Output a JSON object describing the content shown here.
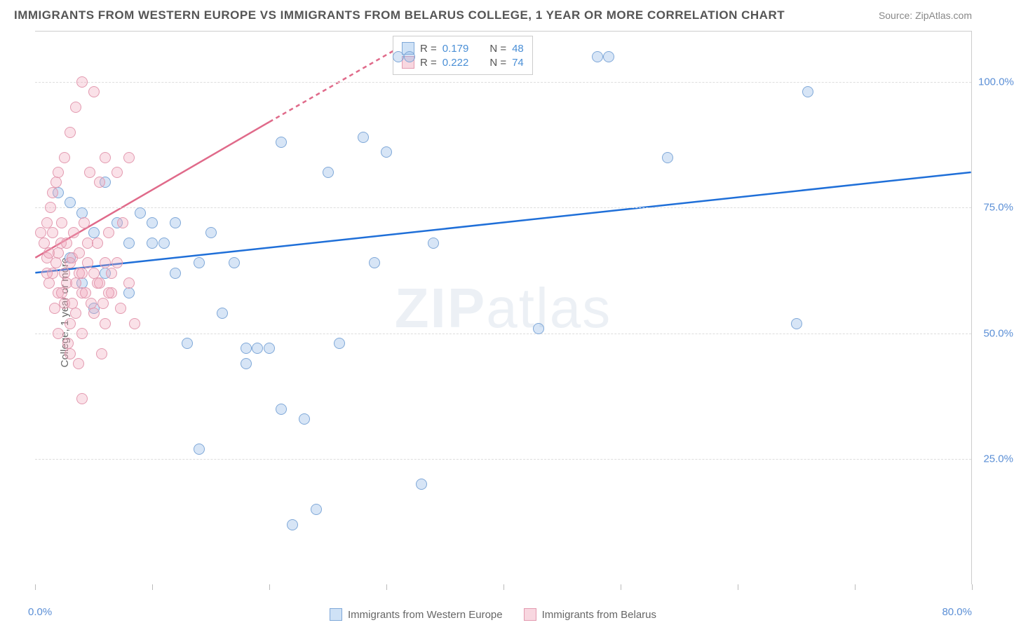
{
  "title": "IMMIGRANTS FROM WESTERN EUROPE VS IMMIGRANTS FROM BELARUS COLLEGE, 1 YEAR OR MORE CORRELATION CHART",
  "source": "Source: ZipAtlas.com",
  "watermark": {
    "zip": "ZIP",
    "atlas": "atlas"
  },
  "chart": {
    "type": "scatter",
    "ylabel": "College, 1 year or more",
    "xlim": [
      0,
      80
    ],
    "ylim": [
      0,
      110
    ],
    "ytick_values": [
      25,
      50,
      75,
      100
    ],
    "ytick_labels": [
      "25.0%",
      "50.0%",
      "75.0%",
      "100.0%"
    ],
    "xtick_values": [
      0,
      10,
      20,
      30,
      40,
      50,
      60,
      70,
      80
    ],
    "xaxis_label_left": "0.0%",
    "xaxis_label_right": "80.0%",
    "grid_color": "#dddddd",
    "background_color": "#ffffff",
    "marker_radius": 8,
    "marker_stroke_width": 1.5,
    "series": [
      {
        "name": "Immigrants from Western Europe",
        "color_fill": "rgba(140,180,230,0.35)",
        "color_stroke": "#7fa8d8",
        "swatch_fill": "#cfe2f6",
        "swatch_stroke": "#7fa8d8",
        "r_value": "0.179",
        "n_value": "48",
        "regression": {
          "x1": 0,
          "y1": 62,
          "x2": 80,
          "y2": 82,
          "color": "#1f6fd8",
          "width": 2.5,
          "dash": "none"
        },
        "points": [
          [
            2,
            78
          ],
          [
            3,
            76
          ],
          [
            4,
            74
          ],
          [
            5,
            70
          ],
          [
            6,
            80
          ],
          [
            7,
            72
          ],
          [
            8,
            68
          ],
          [
            9,
            74
          ],
          [
            10,
            72
          ],
          [
            11,
            68
          ],
          [
            12,
            62
          ],
          [
            13,
            48
          ],
          [
            14,
            27
          ],
          [
            15,
            70
          ],
          [
            16,
            54
          ],
          [
            17,
            64
          ],
          [
            18,
            47
          ],
          [
            18,
            44
          ],
          [
            19,
            47
          ],
          [
            20,
            47
          ],
          [
            21,
            35
          ],
          [
            21,
            88
          ],
          [
            22,
            12
          ],
          [
            23,
            33
          ],
          [
            24,
            15
          ],
          [
            25,
            82
          ],
          [
            26,
            48
          ],
          [
            28,
            89
          ],
          [
            29,
            64
          ],
          [
            30,
            86
          ],
          [
            31,
            105
          ],
          [
            32,
            105
          ],
          [
            33,
            20
          ],
          [
            34,
            68
          ],
          [
            43,
            51
          ],
          [
            48,
            105
          ],
          [
            49,
            105
          ],
          [
            54,
            85
          ],
          [
            65,
            52
          ],
          [
            66,
            98
          ],
          [
            14,
            64
          ],
          [
            12,
            72
          ],
          [
            10,
            68
          ],
          [
            8,
            58
          ],
          [
            6,
            62
          ],
          [
            5,
            55
          ],
          [
            4,
            60
          ],
          [
            3,
            65
          ]
        ]
      },
      {
        "name": "Immigrants from Belarus",
        "color_fill": "rgba(240,170,190,0.35)",
        "color_stroke": "#e39ab0",
        "swatch_fill": "#f8d7e0",
        "swatch_stroke": "#e39ab0",
        "r_value": "0.222",
        "n_value": "74",
        "regression": {
          "x1": 0,
          "y1": 65,
          "x2": 20,
          "y2": 92,
          "extend_x2": 32,
          "extend_y2": 108,
          "color": "#e06a8a",
          "width": 2.5,
          "dash": "6,5"
        },
        "points": [
          [
            0.5,
            70
          ],
          [
            0.8,
            68
          ],
          [
            1,
            72
          ],
          [
            1,
            65
          ],
          [
            1.2,
            60
          ],
          [
            1.3,
            75
          ],
          [
            1.5,
            78
          ],
          [
            1.5,
            62
          ],
          [
            1.7,
            55
          ],
          [
            1.8,
            80
          ],
          [
            2,
            82
          ],
          [
            2,
            58
          ],
          [
            2,
            50
          ],
          [
            2.2,
            68
          ],
          [
            2.3,
            72
          ],
          [
            2.5,
            85
          ],
          [
            2.5,
            56
          ],
          [
            2.7,
            60
          ],
          [
            2.8,
            48
          ],
          [
            3,
            90
          ],
          [
            3,
            52
          ],
          [
            3,
            46
          ],
          [
            3.2,
            65
          ],
          [
            3.3,
            70
          ],
          [
            3.5,
            95
          ],
          [
            3.5,
            54
          ],
          [
            3.7,
            44
          ],
          [
            3.8,
            62
          ],
          [
            4,
            100
          ],
          [
            4,
            58
          ],
          [
            4,
            50
          ],
          [
            4.2,
            72
          ],
          [
            4.5,
            68
          ],
          [
            4.7,
            82
          ],
          [
            5,
            98
          ],
          [
            5,
            54
          ],
          [
            5.3,
            60
          ],
          [
            5.5,
            80
          ],
          [
            5.7,
            46
          ],
          [
            6,
            85
          ],
          [
            6,
            52
          ],
          [
            6.3,
            70
          ],
          [
            6.5,
            58
          ],
          [
            7,
            82
          ],
          [
            7,
            64
          ],
          [
            7.3,
            55
          ],
          [
            7.5,
            72
          ],
          [
            8,
            85
          ],
          [
            8,
            60
          ],
          [
            8.5,
            52
          ],
          [
            4,
            37
          ],
          [
            1,
            62
          ],
          [
            1.2,
            66
          ],
          [
            1.5,
            70
          ],
          [
            1.8,
            64
          ],
          [
            2,
            66
          ],
          [
            2.3,
            58
          ],
          [
            2.5,
            62
          ],
          [
            2.7,
            68
          ],
          [
            3,
            64
          ],
          [
            3.2,
            56
          ],
          [
            3.5,
            60
          ],
          [
            3.8,
            66
          ],
          [
            4,
            62
          ],
          [
            4.3,
            58
          ],
          [
            4.5,
            64
          ],
          [
            4.8,
            56
          ],
          [
            5,
            62
          ],
          [
            5.3,
            68
          ],
          [
            5.5,
            60
          ],
          [
            5.8,
            56
          ],
          [
            6,
            64
          ],
          [
            6.3,
            58
          ],
          [
            6.5,
            62
          ]
        ]
      }
    ],
    "legend_bottom": [
      {
        "label": "Immigrants from Western Europe",
        "swatch_fill": "#cfe2f6",
        "swatch_stroke": "#7fa8d8"
      },
      {
        "label": "Immigrants from Belarus",
        "swatch_fill": "#f8d7e0",
        "swatch_stroke": "#e39ab0"
      }
    ],
    "legend_top": {
      "r_label": "R =",
      "n_label": "N ="
    }
  }
}
